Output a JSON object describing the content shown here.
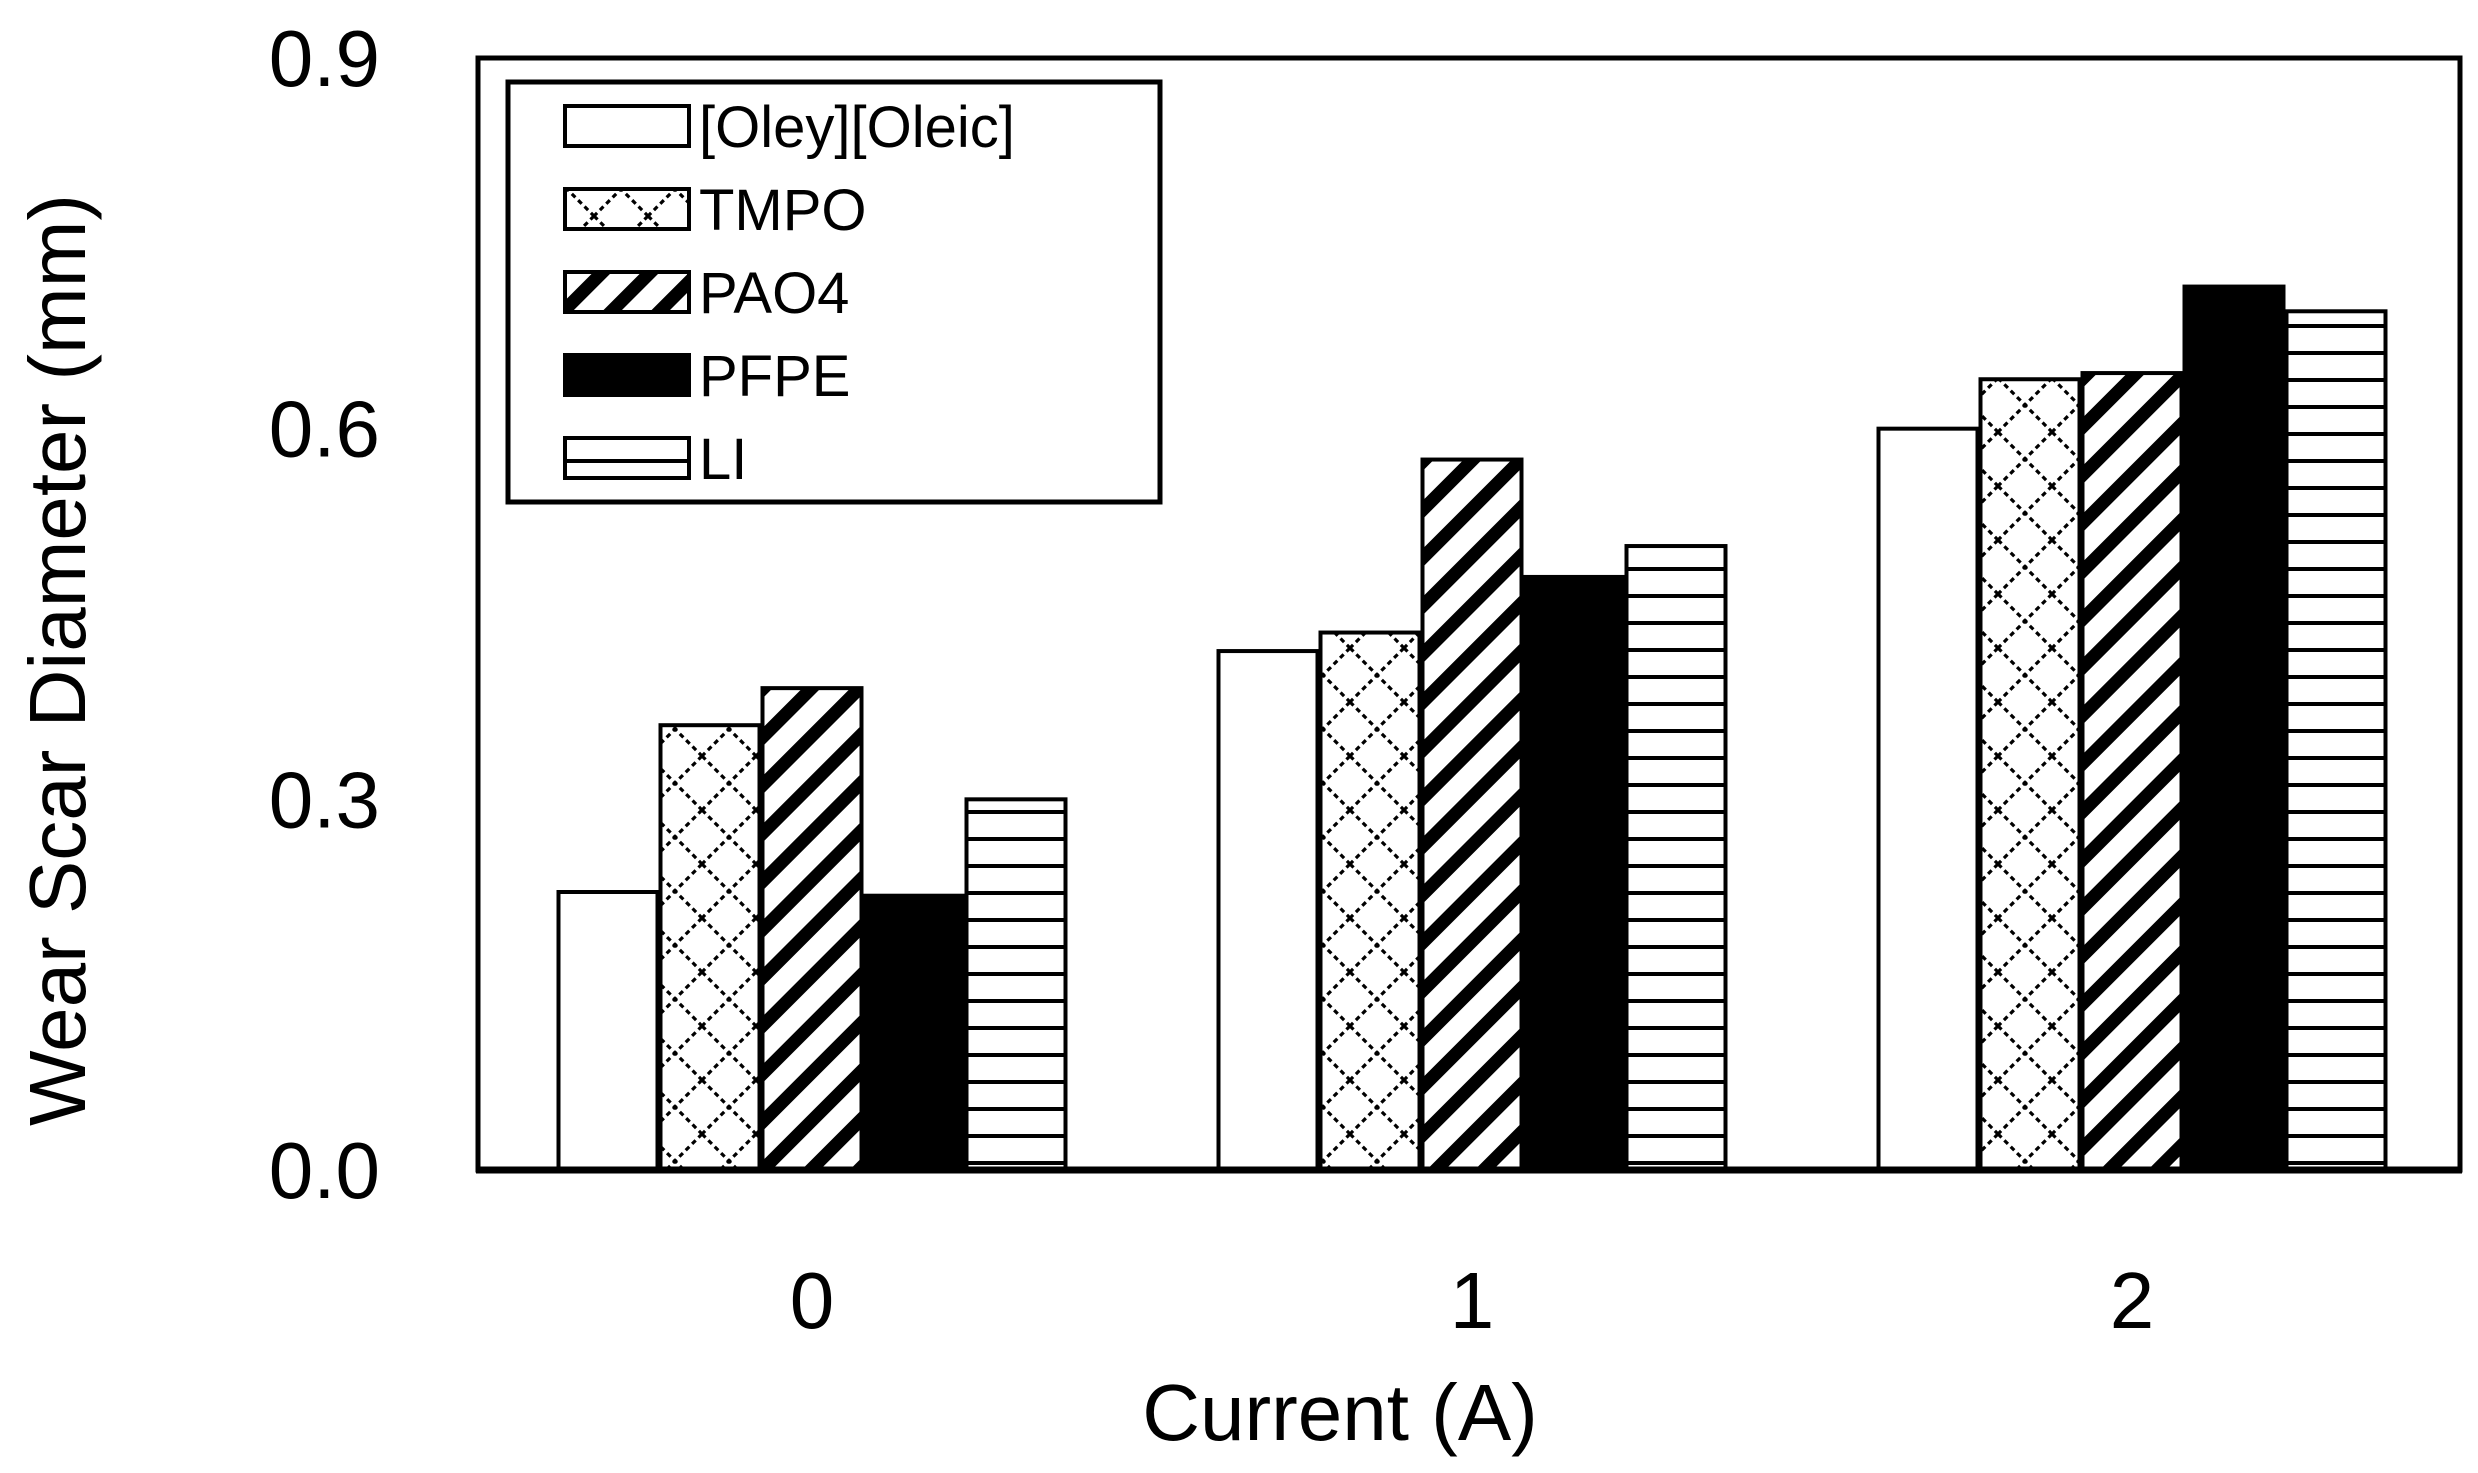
{
  "chart_data": {
    "type": "bar",
    "title": "",
    "xlabel": "Current (A)",
    "ylabel": "Wear Scar Diameter (mm)",
    "categories": [
      "0",
      "1",
      "2"
    ],
    "ylim": [
      0,
      0.9
    ],
    "yticks": [
      0.0,
      0.3,
      0.6,
      0.9
    ],
    "ytick_labels": [
      "0.0",
      "0.3",
      "0.6",
      "0.9"
    ],
    "grid": false,
    "legend_position": "top-left",
    "series": [
      {
        "name": "[Oley][Oleic]",
        "pattern": "solid-white",
        "values": [
          0.225,
          0.42,
          0.6
        ]
      },
      {
        "name": "TMPO",
        "pattern": "diamond-lattice",
        "values": [
          0.36,
          0.435,
          0.64
        ]
      },
      {
        "name": "PAO4",
        "pattern": "diagonal-stripes",
        "values": [
          0.39,
          0.575,
          0.645
        ]
      },
      {
        "name": "PFPE",
        "pattern": "solid-black",
        "values": [
          0.222,
          0.48,
          0.715
        ]
      },
      {
        "name": "LI",
        "pattern": "horizontal-lines",
        "values": [
          0.3,
          0.505,
          0.695
        ]
      }
    ],
    "colors": {
      "ink": "#000000",
      "paper": "#ffffff"
    }
  }
}
